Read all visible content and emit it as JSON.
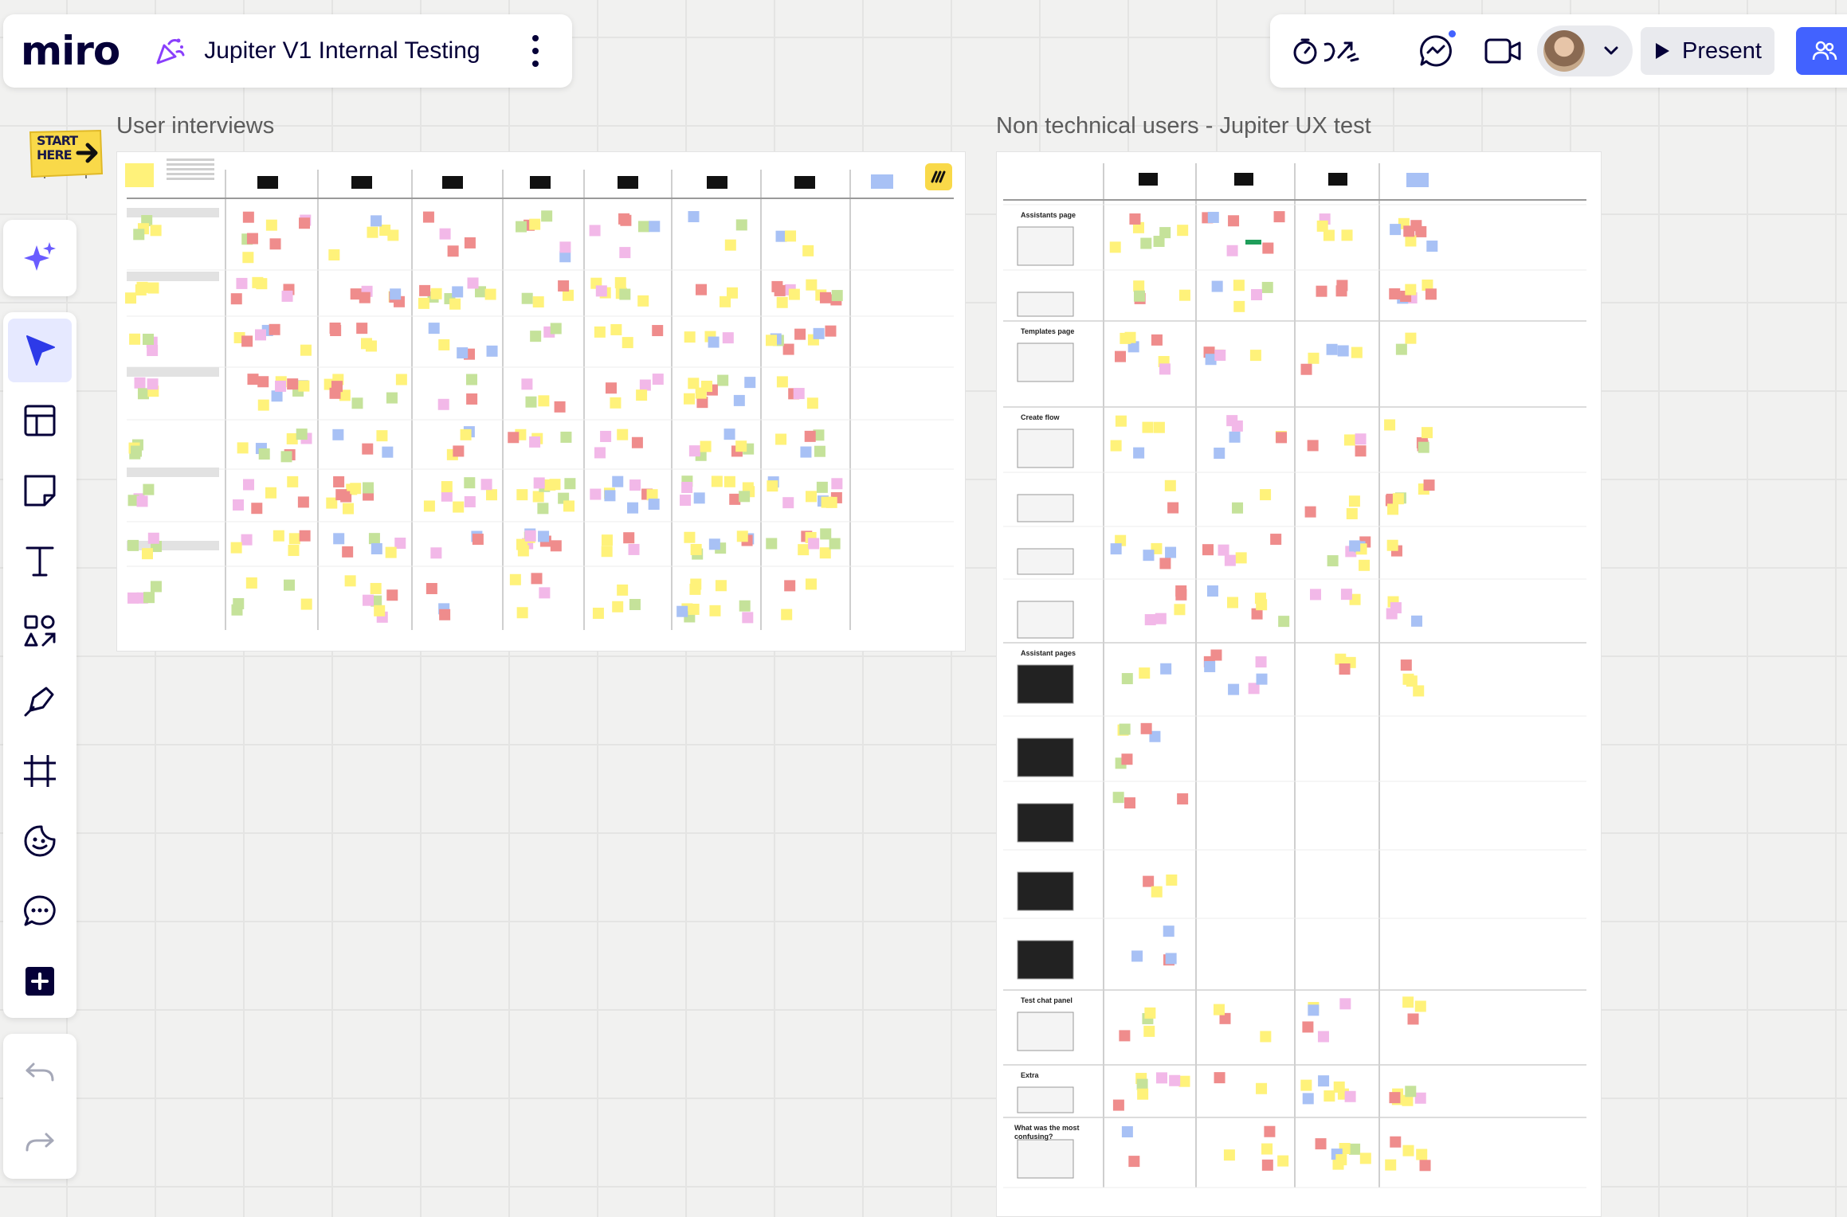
{
  "app": {
    "logo": "miro"
  },
  "board": {
    "title": "Jupiter V1 Internal Testing"
  },
  "topbar": {
    "present_label": "Present"
  },
  "frames": {
    "left": {
      "title": "User interviews"
    },
    "right": {
      "title": "Non technical users - Jupiter UX test",
      "sections": [
        "Assistants page",
        "Templates page",
        "Create flow",
        "Assistant pages",
        "Test chat panel",
        "Extra",
        "What was the most confusing?"
      ]
    }
  },
  "sticker": {
    "line1": "START",
    "line2": "HERE"
  },
  "toolbar": {
    "tools": [
      "ai-assist",
      "select",
      "templates",
      "sticky-note",
      "text",
      "shapes",
      "pen",
      "frame",
      "stickers",
      "comment",
      "more-apps"
    ],
    "history": [
      "undo",
      "redo"
    ]
  },
  "colors": {
    "accent": "#4262ff",
    "select_active": "#2d3ae8",
    "sticky_yellow": "#fff27a",
    "sticky_red": "#ef8c8c",
    "sticky_green": "#c5e29a",
    "sticky_blue": "#a8c1f5",
    "sticky_pink": "#f2b8e8"
  }
}
